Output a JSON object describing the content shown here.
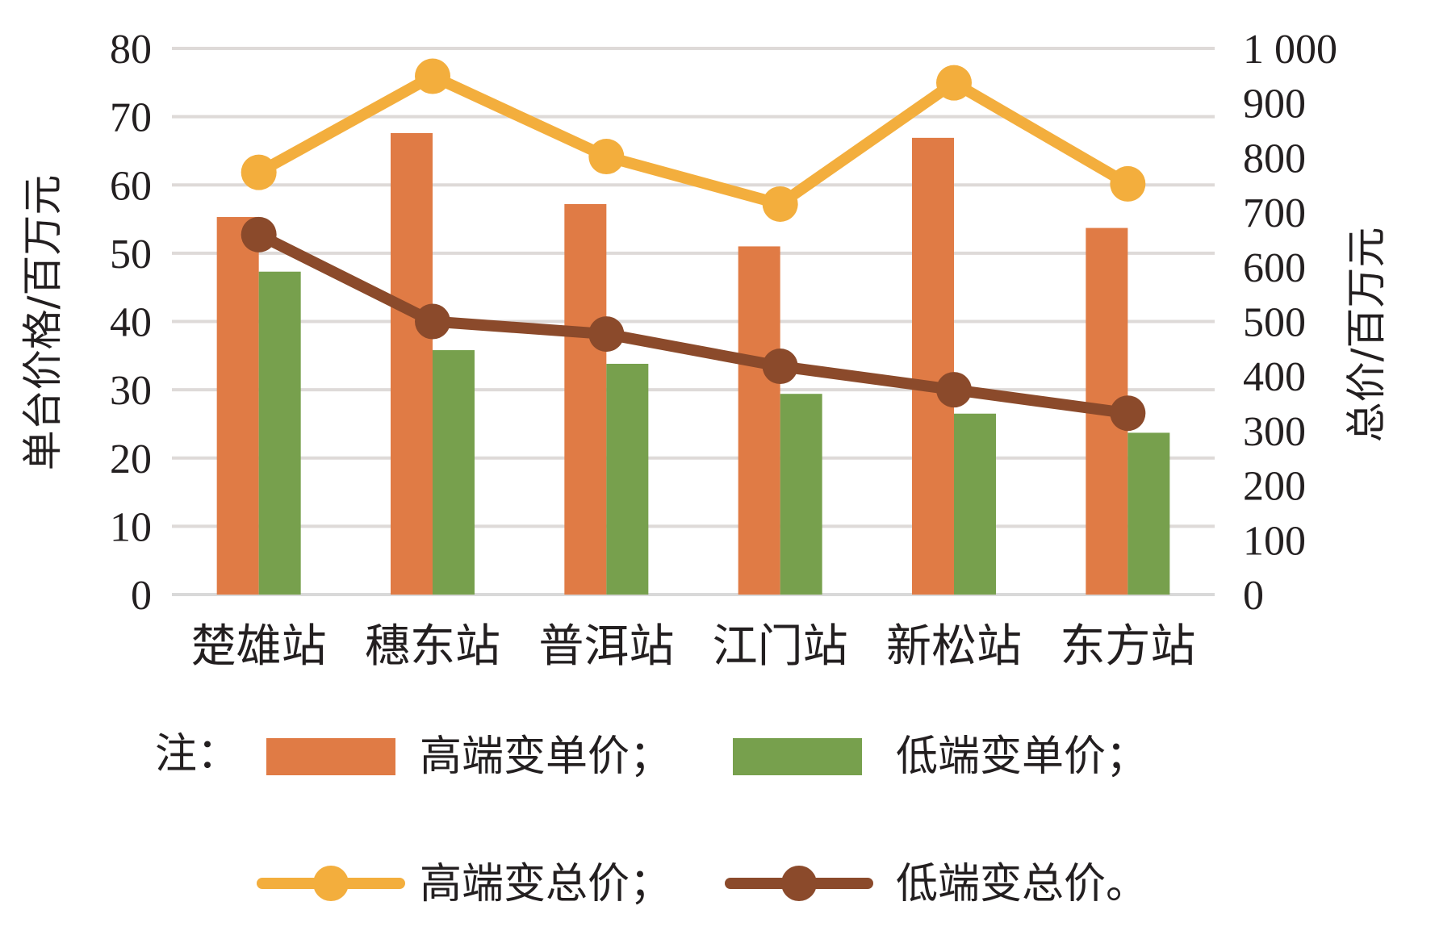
{
  "chart_data": {
    "type": "bar",
    "categories": [
      "楚雄站",
      "穗东站",
      "普洱站",
      "江门站",
      "新松站",
      "东方站"
    ],
    "ylabel_left": "单台价格/百万元",
    "ylabel_right": "总价/百万元",
    "ylim_left": [
      0,
      80
    ],
    "ylim_right": [
      0,
      1000
    ],
    "yticks_left": [
      "0",
      "10",
      "20",
      "30",
      "40",
      "50",
      "60",
      "70",
      "80"
    ],
    "yticks_right": [
      "0",
      "100",
      "200",
      "300",
      "400",
      "500",
      "600",
      "700",
      "800",
      "900",
      "1 000"
    ],
    "grid": true,
    "series": [
      {
        "name": "高端变单价；",
        "type": "bar",
        "axis": "left",
        "color": "#e07b45",
        "values": [
          55.3,
          67.6,
          57.2,
          51.0,
          66.9,
          53.7
        ]
      },
      {
        "name": "低端变单价；",
        "type": "bar",
        "axis": "left",
        "color": "#77a04d",
        "values": [
          47.3,
          35.8,
          33.8,
          29.4,
          26.5,
          23.7
        ]
      },
      {
        "name": "高端变总价；",
        "type": "line",
        "axis": "right",
        "color": "#f3ae3d",
        "values": [
          773,
          949,
          802,
          715,
          937,
          752
        ]
      },
      {
        "name": "低端变总价。",
        "type": "line",
        "axis": "right",
        "color": "#8b4a2b",
        "values": [
          659,
          500,
          477,
          418,
          375,
          332
        ]
      }
    ],
    "legend": {
      "prefix": "注："
    }
  }
}
